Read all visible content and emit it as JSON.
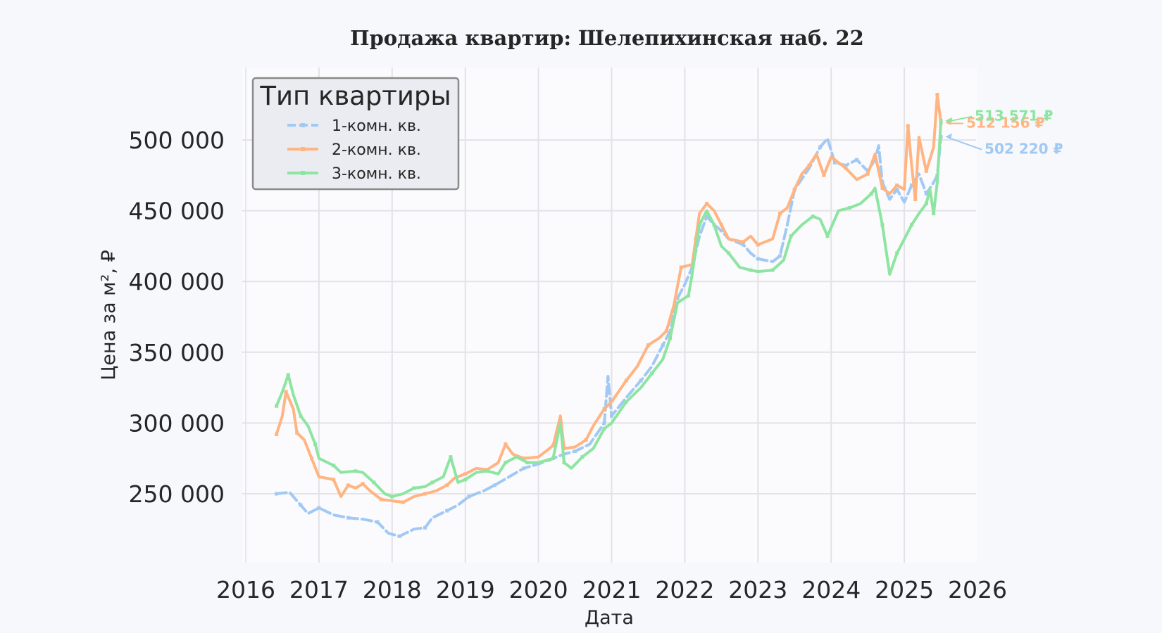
{
  "chart_data": {
    "type": "line",
    "title": "Продажа квартир: Шелепихинская наб. 22",
    "xlabel": "Дата",
    "ylabel": "Цена за м², ₽",
    "xlim": [
      2016.0,
      2026.0
    ],
    "ylim": [
      202000,
      542000
    ],
    "x_ticks": [
      2016,
      2017,
      2018,
      2019,
      2020,
      2021,
      2022,
      2023,
      2024,
      2025,
      2026
    ],
    "x_tick_labels": [
      "2016",
      "2017",
      "2018",
      "2019",
      "2020",
      "2021",
      "2022",
      "2023",
      "2024",
      "2025",
      "2026"
    ],
    "y_ticks": [
      250000,
      300000,
      350000,
      400000,
      450000,
      500000
    ],
    "y_tick_labels": [
      "250 000",
      "300 000",
      "350 000",
      "400 000",
      "450 000",
      "500 000"
    ],
    "grid": true,
    "legend": {
      "title": "Тип квартиры",
      "placement": "upper-left"
    },
    "series": [
      {
        "name": "1-комн. кв.",
        "color": "#a1c9f4",
        "style": "dashed",
        "end_label": "502 220 ₽",
        "points": [
          [
            2016.42,
            250000
          ],
          [
            2016.6,
            251000
          ],
          [
            2016.75,
            242000
          ],
          [
            2016.85,
            236000
          ],
          [
            2017.0,
            240000
          ],
          [
            2017.2,
            235000
          ],
          [
            2017.4,
            233000
          ],
          [
            2017.6,
            232000
          ],
          [
            2017.8,
            230000
          ],
          [
            2017.95,
            222000
          ],
          [
            2018.1,
            220000
          ],
          [
            2018.3,
            225000
          ],
          [
            2018.45,
            226000
          ],
          [
            2018.55,
            233000
          ],
          [
            2018.75,
            238000
          ],
          [
            2018.9,
            242000
          ],
          [
            2019.05,
            248000
          ],
          [
            2019.25,
            252000
          ],
          [
            2019.4,
            256000
          ],
          [
            2019.6,
            262000
          ],
          [
            2019.8,
            268000
          ],
          [
            2020.0,
            271000
          ],
          [
            2020.15,
            274000
          ],
          [
            2020.35,
            278000
          ],
          [
            2020.5,
            280000
          ],
          [
            2020.7,
            285000
          ],
          [
            2020.9,
            300000
          ],
          [
            2020.95,
            333000
          ],
          [
            2021.0,
            305000
          ],
          [
            2021.2,
            318000
          ],
          [
            2021.4,
            330000
          ],
          [
            2021.55,
            340000
          ],
          [
            2021.7,
            355000
          ],
          [
            2021.8,
            365000
          ],
          [
            2021.9,
            388000
          ],
          [
            2022.0,
            398000
          ],
          [
            2022.1,
            410000
          ],
          [
            2022.2,
            432000
          ],
          [
            2022.3,
            446000
          ],
          [
            2022.4,
            440000
          ],
          [
            2022.5,
            436000
          ],
          [
            2022.6,
            430000
          ],
          [
            2022.8,
            426000
          ],
          [
            2022.9,
            420000
          ],
          [
            2023.0,
            416000
          ],
          [
            2023.2,
            414000
          ],
          [
            2023.3,
            418000
          ],
          [
            2023.4,
            440000
          ],
          [
            2023.5,
            465000
          ],
          [
            2023.7,
            480000
          ],
          [
            2023.85,
            495000
          ],
          [
            2023.95,
            501000
          ],
          [
            2024.05,
            484000
          ],
          [
            2024.2,
            482000
          ],
          [
            2024.35,
            486000
          ],
          [
            2024.5,
            478000
          ],
          [
            2024.6,
            486000
          ],
          [
            2024.65,
            496000
          ],
          [
            2024.7,
            470000
          ],
          [
            2024.8,
            458000
          ],
          [
            2024.9,
            465000
          ],
          [
            2025.0,
            456000
          ],
          [
            2025.1,
            468000
          ],
          [
            2025.2,
            476000
          ],
          [
            2025.3,
            462000
          ],
          [
            2025.4,
            470000
          ],
          [
            2025.45,
            475000
          ],
          [
            2025.5,
            502220
          ]
        ]
      },
      {
        "name": "2-комн. кв.",
        "color": "#ffb482",
        "style": "solid",
        "end_label": "512 156 ₽",
        "points": [
          [
            2016.42,
            292000
          ],
          [
            2016.5,
            305000
          ],
          [
            2016.55,
            322000
          ],
          [
            2016.65,
            310000
          ],
          [
            2016.7,
            293000
          ],
          [
            2016.8,
            288000
          ],
          [
            2016.9,
            275000
          ],
          [
            2017.0,
            262000
          ],
          [
            2017.2,
            260000
          ],
          [
            2017.3,
            248000
          ],
          [
            2017.4,
            256000
          ],
          [
            2017.5,
            254000
          ],
          [
            2017.6,
            257000
          ],
          [
            2017.7,
            252000
          ],
          [
            2017.85,
            246000
          ],
          [
            2018.0,
            245000
          ],
          [
            2018.15,
            244000
          ],
          [
            2018.3,
            248000
          ],
          [
            2018.45,
            250000
          ],
          [
            2018.6,
            252000
          ],
          [
            2018.75,
            256000
          ],
          [
            2018.85,
            261000
          ],
          [
            2019.0,
            264000
          ],
          [
            2019.15,
            268000
          ],
          [
            2019.3,
            267000
          ],
          [
            2019.45,
            272000
          ],
          [
            2019.55,
            285000
          ],
          [
            2019.65,
            278000
          ],
          [
            2019.8,
            275000
          ],
          [
            2020.0,
            276000
          ],
          [
            2020.2,
            284000
          ],
          [
            2020.3,
            305000
          ],
          [
            2020.35,
            282000
          ],
          [
            2020.5,
            283000
          ],
          [
            2020.65,
            288000
          ],
          [
            2020.75,
            298000
          ],
          [
            2020.9,
            310000
          ],
          [
            2021.0,
            315000
          ],
          [
            2021.2,
            330000
          ],
          [
            2021.35,
            340000
          ],
          [
            2021.5,
            355000
          ],
          [
            2021.65,
            360000
          ],
          [
            2021.75,
            365000
          ],
          [
            2021.85,
            383000
          ],
          [
            2021.95,
            410000
          ],
          [
            2022.1,
            412000
          ],
          [
            2022.15,
            430000
          ],
          [
            2022.2,
            448000
          ],
          [
            2022.3,
            455000
          ],
          [
            2022.4,
            450000
          ],
          [
            2022.5,
            440000
          ],
          [
            2022.6,
            430000
          ],
          [
            2022.8,
            428000
          ],
          [
            2022.9,
            432000
          ],
          [
            2023.0,
            426000
          ],
          [
            2023.2,
            430000
          ],
          [
            2023.3,
            448000
          ],
          [
            2023.4,
            452000
          ],
          [
            2023.5,
            465000
          ],
          [
            2023.6,
            476000
          ],
          [
            2023.7,
            482000
          ],
          [
            2023.8,
            490000
          ],
          [
            2023.9,
            475000
          ],
          [
            2024.0,
            488000
          ],
          [
            2024.2,
            480000
          ],
          [
            2024.35,
            472000
          ],
          [
            2024.5,
            476000
          ],
          [
            2024.6,
            490000
          ],
          [
            2024.7,
            466000
          ],
          [
            2024.8,
            462000
          ],
          [
            2024.9,
            468000
          ],
          [
            2025.0,
            465000
          ],
          [
            2025.05,
            510000
          ],
          [
            2025.1,
            482000
          ],
          [
            2025.15,
            458000
          ],
          [
            2025.2,
            502000
          ],
          [
            2025.3,
            478000
          ],
          [
            2025.4,
            495000
          ],
          [
            2025.45,
            532000
          ],
          [
            2025.5,
            512156
          ]
        ]
      },
      {
        "name": "3-комн. кв.",
        "color": "#8de5a1",
        "style": "solid",
        "end_label": "513 571 ₽",
        "points": [
          [
            2016.42,
            312000
          ],
          [
            2016.5,
            322000
          ],
          [
            2016.58,
            334000
          ],
          [
            2016.65,
            320000
          ],
          [
            2016.75,
            305000
          ],
          [
            2016.85,
            298000
          ],
          [
            2016.95,
            285000
          ],
          [
            2017.0,
            275000
          ],
          [
            2017.2,
            270000
          ],
          [
            2017.3,
            265000
          ],
          [
            2017.5,
            266000
          ],
          [
            2017.6,
            265000
          ],
          [
            2017.75,
            258000
          ],
          [
            2017.9,
            250000
          ],
          [
            2018.0,
            248000
          ],
          [
            2018.15,
            250000
          ],
          [
            2018.3,
            254000
          ],
          [
            2018.45,
            255000
          ],
          [
            2018.55,
            258000
          ],
          [
            2018.7,
            262000
          ],
          [
            2018.8,
            276000
          ],
          [
            2018.9,
            258000
          ],
          [
            2019.0,
            260000
          ],
          [
            2019.15,
            265000
          ],
          [
            2019.3,
            266000
          ],
          [
            2019.45,
            264000
          ],
          [
            2019.55,
            272000
          ],
          [
            2019.7,
            276000
          ],
          [
            2019.85,
            272000
          ],
          [
            2020.0,
            272000
          ],
          [
            2020.2,
            275000
          ],
          [
            2020.3,
            300000
          ],
          [
            2020.35,
            272000
          ],
          [
            2020.45,
            268000
          ],
          [
            2020.6,
            276000
          ],
          [
            2020.75,
            282000
          ],
          [
            2020.9,
            296000
          ],
          [
            2021.0,
            300000
          ],
          [
            2021.2,
            315000
          ],
          [
            2021.4,
            325000
          ],
          [
            2021.55,
            335000
          ],
          [
            2021.7,
            345000
          ],
          [
            2021.8,
            360000
          ],
          [
            2021.9,
            385000
          ],
          [
            2022.05,
            390000
          ],
          [
            2022.1,
            405000
          ],
          [
            2022.2,
            440000
          ],
          [
            2022.3,
            450000
          ],
          [
            2022.4,
            440000
          ],
          [
            2022.5,
            425000
          ],
          [
            2022.6,
            420000
          ],
          [
            2022.75,
            410000
          ],
          [
            2022.9,
            408000
          ],
          [
            2023.0,
            407000
          ],
          [
            2023.2,
            408000
          ],
          [
            2023.35,
            415000
          ],
          [
            2023.45,
            432000
          ],
          [
            2023.6,
            440000
          ],
          [
            2023.75,
            446000
          ],
          [
            2023.85,
            444000
          ],
          [
            2023.95,
            432000
          ],
          [
            2024.1,
            450000
          ],
          [
            2024.25,
            452000
          ],
          [
            2024.4,
            455000
          ],
          [
            2024.55,
            462000
          ],
          [
            2024.6,
            466000
          ],
          [
            2024.7,
            440000
          ],
          [
            2024.8,
            405000
          ],
          [
            2024.9,
            420000
          ],
          [
            2025.0,
            430000
          ],
          [
            2025.1,
            440000
          ],
          [
            2025.2,
            448000
          ],
          [
            2025.3,
            455000
          ],
          [
            2025.35,
            465000
          ],
          [
            2025.4,
            448000
          ],
          [
            2025.45,
            470000
          ],
          [
            2025.5,
            513571
          ]
        ]
      }
    ]
  }
}
